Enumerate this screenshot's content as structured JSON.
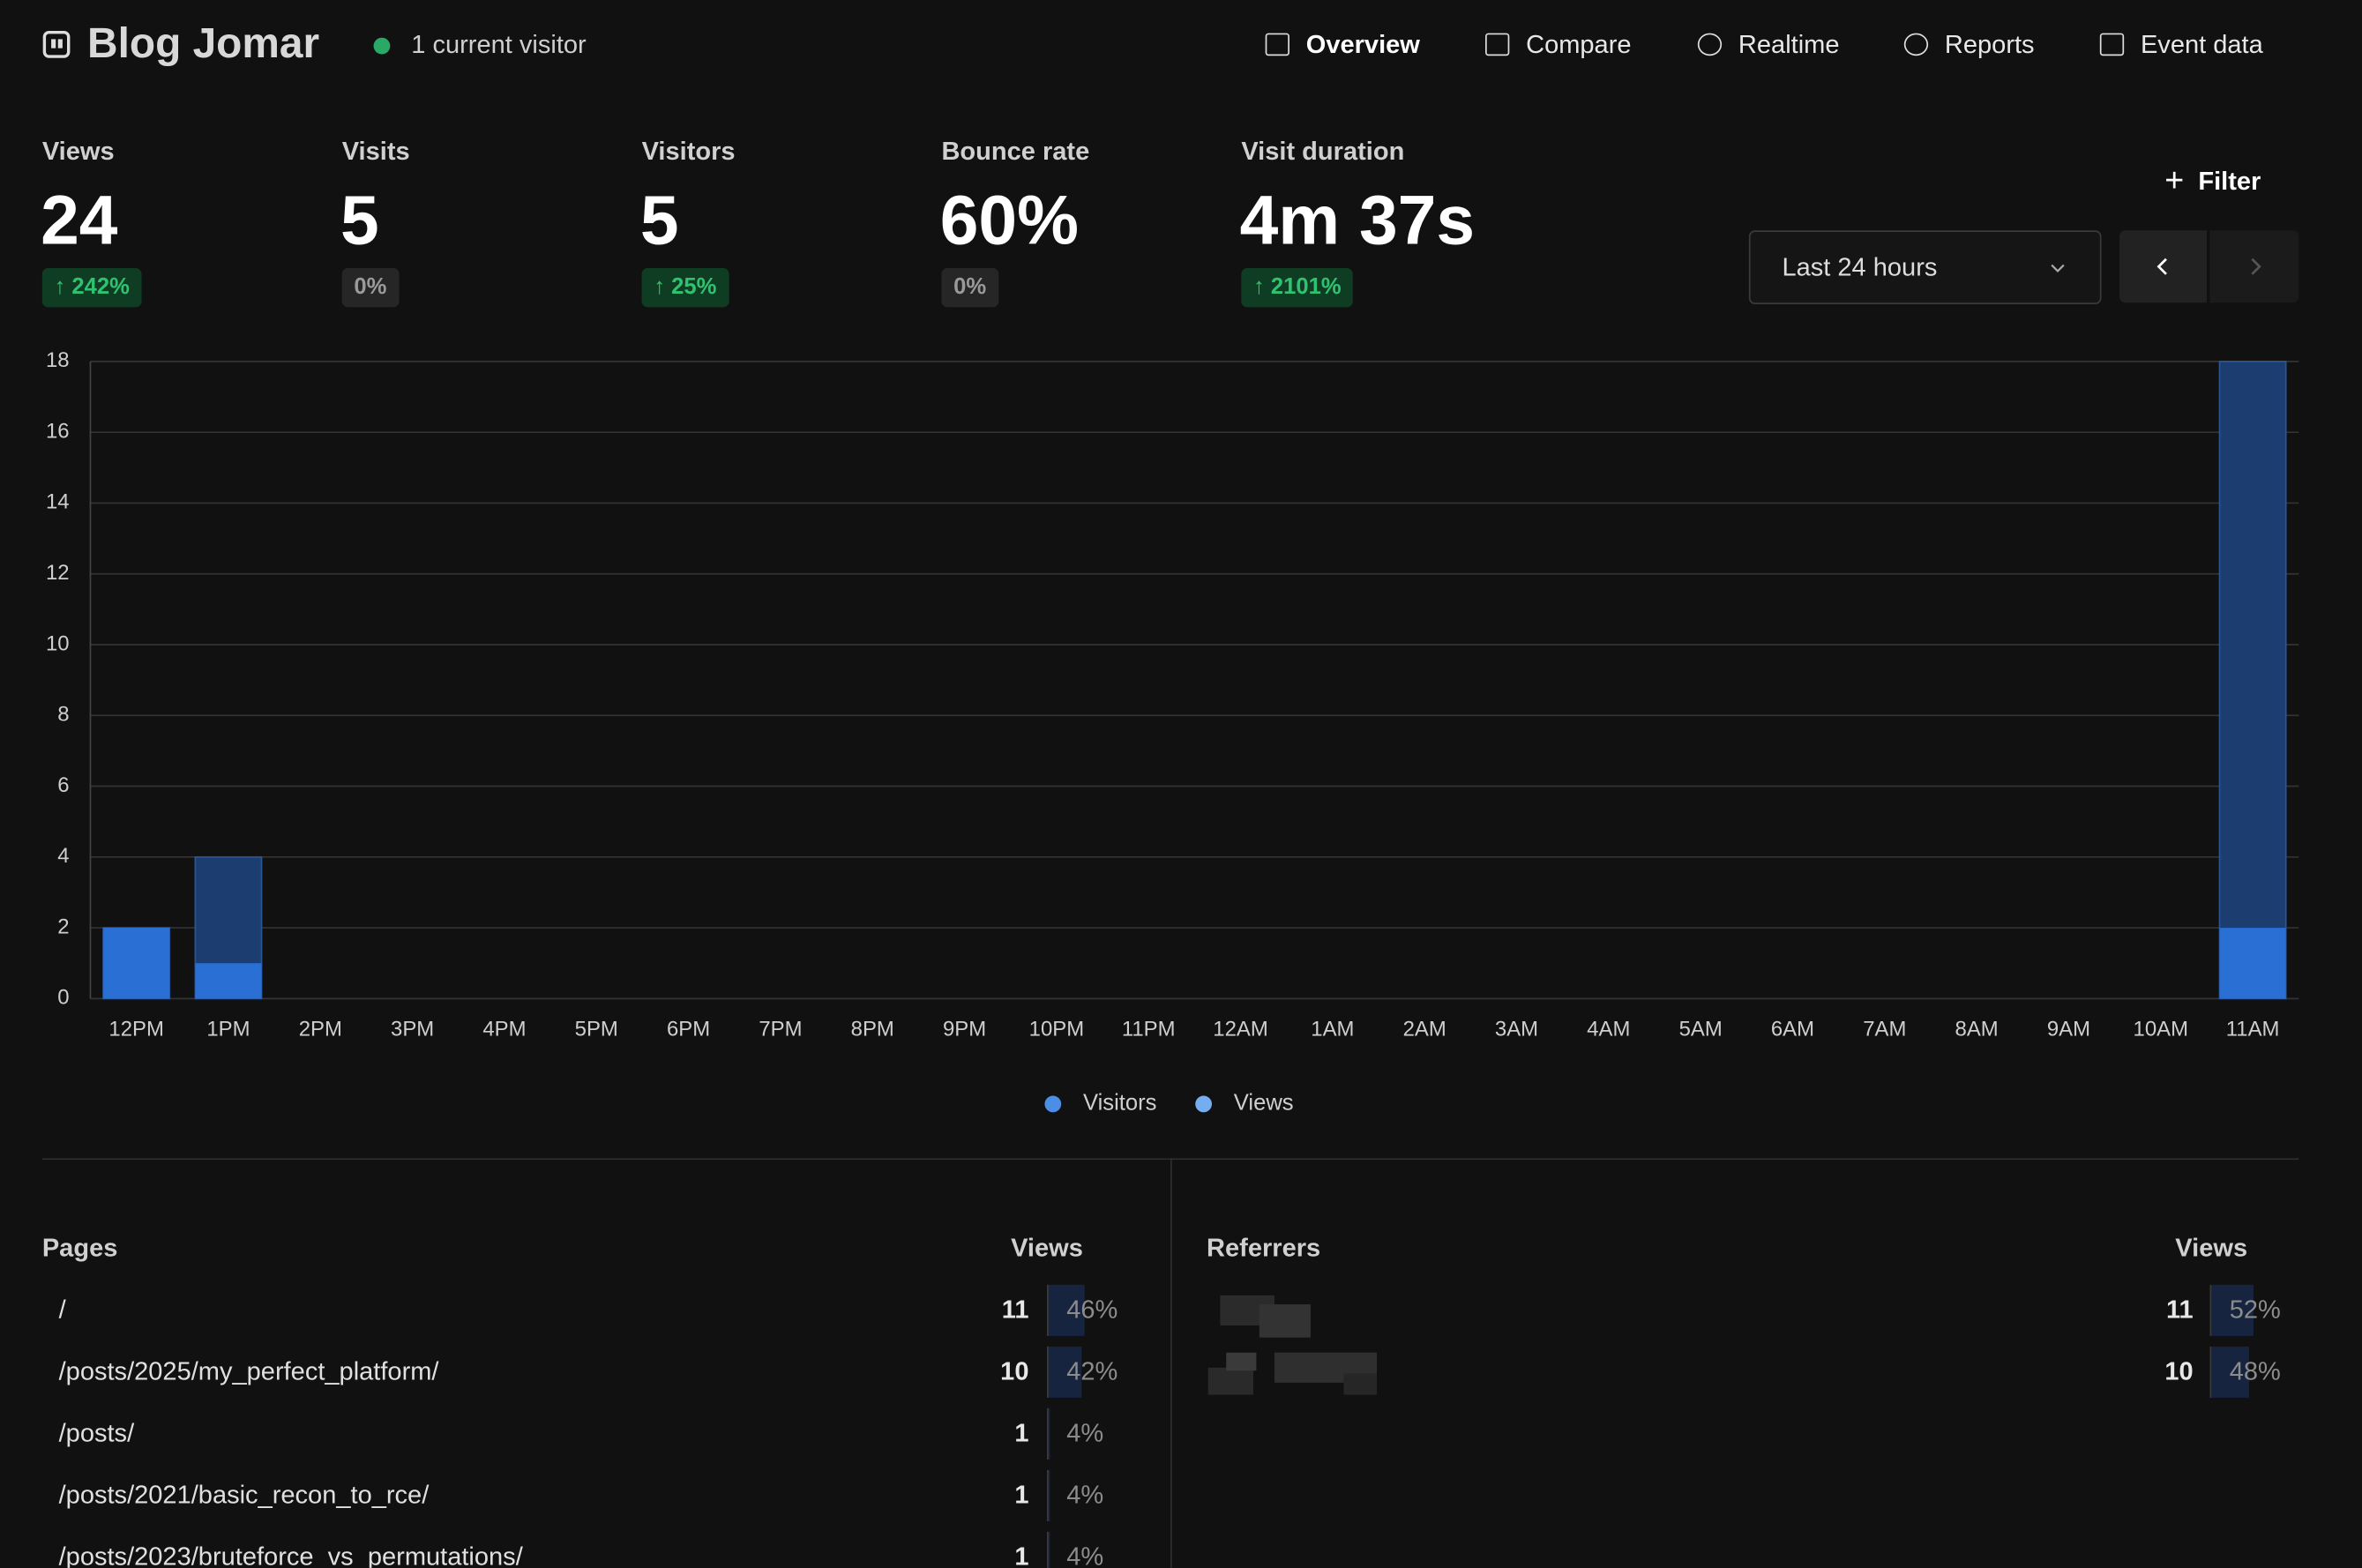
{
  "header": {
    "title": "Blog Jomar",
    "status": "1 current visitor",
    "nav": [
      "Overview",
      "Compare",
      "Realtime",
      "Reports",
      "Event data"
    ]
  },
  "metrics": [
    {
      "label": "Views",
      "value": 24,
      "change": "242%",
      "trend": "up"
    },
    {
      "label": "Visits",
      "value": 5,
      "change": "0%",
      "trend": "flat"
    },
    {
      "label": "Visitors",
      "value": 5,
      "change": "25%",
      "trend": "up"
    },
    {
      "label": "Bounce rate",
      "value": "60%",
      "change": "0%",
      "trend": "flat"
    },
    {
      "label": "Visit duration",
      "value": "4m 37s",
      "change": "2101%",
      "trend": "up"
    }
  ],
  "filter": "Filter",
  "range": "Last 24 hours",
  "chart_data": {
    "type": "bar",
    "categories": [
      "12PM",
      "1PM",
      "2PM",
      "3PM",
      "4PM",
      "5PM",
      "6PM",
      "7PM",
      "8PM",
      "9PM",
      "10PM",
      "11PM",
      "12AM",
      "1AM",
      "2AM",
      "3AM",
      "4AM",
      "5AM",
      "6AM",
      "7AM",
      "8AM",
      "9AM",
      "10AM",
      "11AM"
    ],
    "series": [
      {
        "name": "Visitors",
        "color": "#2a6fd4",
        "legend_color": "#4a8ee6",
        "values": [
          2,
          1,
          0,
          0,
          0,
          0,
          0,
          0,
          0,
          0,
          0,
          0,
          0,
          0,
          0,
          0,
          0,
          0,
          0,
          0,
          0,
          0,
          0,
          2
        ]
      },
      {
        "name": "Views",
        "color": "#1c3d70",
        "legend_color": "#74aef0",
        "values": [
          2,
          4,
          0,
          0,
          0,
          0,
          0,
          0,
          0,
          0,
          0,
          0,
          0,
          0,
          0,
          0,
          0,
          0,
          0,
          0,
          0,
          0,
          0,
          18
        ]
      }
    ],
    "ylim": [
      0,
      18
    ],
    "yticks": [
      0,
      2,
      4,
      6,
      8,
      10,
      12,
      14,
      16,
      18
    ],
    "grid": true
  },
  "pages": {
    "title": "Pages",
    "metric": "Views",
    "rows": [
      {
        "label": "/",
        "value": 11,
        "percent": "46%"
      },
      {
        "label": "/posts/2025/my_perfect_platform/",
        "value": 10,
        "percent": "42%"
      },
      {
        "label": "/posts/",
        "value": 1,
        "percent": "4%"
      },
      {
        "label": "/posts/2021/basic_recon_to_rce/",
        "value": 1,
        "percent": "4%"
      },
      {
        "label": "/posts/2023/bruteforce_vs_permutations/",
        "value": 1,
        "percent": "4%"
      }
    ]
  },
  "referrers": {
    "title": "Referrers",
    "metric": "Views",
    "rows": [
      {
        "value": 11,
        "percent": "52%"
      },
      {
        "value": 10,
        "percent": "48%"
      }
    ]
  }
}
